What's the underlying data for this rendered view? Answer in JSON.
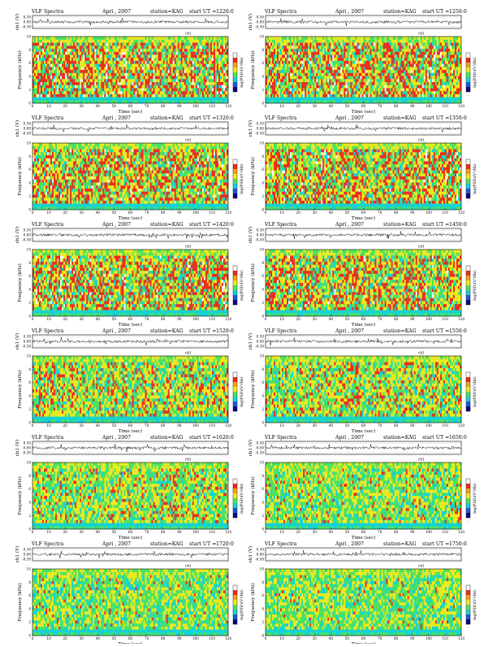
{
  "figure": {
    "header": {
      "title": "VLF Spectra",
      "date": "Apri , 2007",
      "station": "station=KAG",
      "start_prefix": "start UT ="
    },
    "axes": {
      "waveform_ylabel": "ch1 (V)",
      "spectrogram_ylabel_top": "ch1",
      "spectrogram_ylabel": "Frequency (kHz)",
      "xlabel": "Time (sec)",
      "colorbar_label": "log(PSD)(V²/Hz)",
      "colorbar_bottom_tick": "-"
    },
    "palette": {
      "background_low": "#16d3d3",
      "low": "#4fe35c",
      "mid": "#f2ea1c",
      "high": "#f02b1a",
      "saturated": "#ffffff",
      "trace": "#000000"
    }
  },
  "chart_data": [
    {
      "type": "heatmap",
      "start_ut": "1220:0",
      "x": [
        0,
        120
      ],
      "y": [
        0,
        10
      ],
      "waveform_ylim": [
        -0.3,
        0.3
      ],
      "waveform_ticks": [
        "0.30",
        "0.00",
        "-0.30"
      ],
      "x_ticks": [
        "0",
        "10",
        "20",
        "30",
        "40",
        "50",
        "60",
        "70",
        "80",
        "90",
        "100",
        "110",
        "120"
      ],
      "y_ticks": [
        "0",
        "2",
        "4",
        "6",
        "8",
        "10"
      ],
      "activity": 0.85
    },
    {
      "type": "heatmap",
      "start_ut": "1250:0",
      "x": [
        0,
        120
      ],
      "y": [
        0,
        10
      ],
      "waveform_ylim": [
        -0.3,
        0.3
      ],
      "waveform_ticks": [
        "0.30",
        "0.00",
        "-0.30"
      ],
      "x_ticks": [
        "0",
        "10",
        "20",
        "30",
        "40",
        "50",
        "60",
        "70",
        "80",
        "90",
        "100",
        "110",
        "120"
      ],
      "y_ticks": [
        "0",
        "2",
        "4",
        "6",
        "8",
        "10"
      ],
      "activity": 0.85
    },
    {
      "type": "heatmap",
      "start_ut": "1320:0",
      "x": [
        0,
        120
      ],
      "y": [
        0,
        10
      ],
      "waveform_ylim": [
        -0.3,
        0.3
      ],
      "waveform_ticks": [
        "0.30",
        "0.00",
        "-0.30"
      ],
      "x_ticks": [
        "0",
        "10",
        "20",
        "30",
        "40",
        "50",
        "60",
        "70",
        "80",
        "90",
        "100",
        "110",
        "120"
      ],
      "y_ticks": [
        "0",
        "2",
        "4",
        "6",
        "8",
        "10"
      ],
      "activity": 0.8
    },
    {
      "type": "heatmap",
      "start_ut": "1350:0",
      "x": [
        0,
        120
      ],
      "y": [
        0,
        10
      ],
      "waveform_ylim": [
        -0.3,
        0.3
      ],
      "waveform_ticks": [
        "0.30",
        "0.00",
        "-0.30"
      ],
      "x_ticks": [
        "0",
        "10",
        "20",
        "30",
        "40",
        "50",
        "60",
        "70",
        "80",
        "90",
        "100",
        "110",
        "120"
      ],
      "y_ticks": [
        "0",
        "2",
        "4",
        "6",
        "8",
        "10"
      ],
      "activity": 0.82
    },
    {
      "type": "heatmap",
      "start_ut": "1420:0",
      "x": [
        0,
        120
      ],
      "y": [
        0,
        10
      ],
      "waveform_ylim": [
        -0.3,
        0.3
      ],
      "waveform_ticks": [
        "0.30",
        "0.00",
        "-0.30"
      ],
      "x_ticks": [
        "0",
        "10",
        "20",
        "30",
        "40",
        "50",
        "60",
        "70",
        "80",
        "90",
        "100",
        "110",
        "120"
      ],
      "y_ticks": [
        "0",
        "2",
        "4",
        "6",
        "8",
        "10"
      ],
      "activity": 0.8
    },
    {
      "type": "heatmap",
      "start_ut": "1450:0",
      "x": [
        0,
        120
      ],
      "y": [
        0,
        10
      ],
      "waveform_ylim": [
        -0.3,
        0.3
      ],
      "waveform_ticks": [
        "0.30",
        "0.00",
        "-0.30"
      ],
      "x_ticks": [
        "0",
        "10",
        "20",
        "30",
        "40",
        "50",
        "60",
        "70",
        "80",
        "90",
        "100",
        "110",
        "120"
      ],
      "y_ticks": [
        "0",
        "2",
        "4",
        "6",
        "8",
        "10"
      ],
      "activity": 0.78
    },
    {
      "type": "heatmap",
      "start_ut": "1520:0",
      "x": [
        0,
        120
      ],
      "y": [
        0,
        10
      ],
      "waveform_ylim": [
        -0.3,
        0.3
      ],
      "waveform_ticks": [
        "0.30",
        "0.00",
        "-0.30"
      ],
      "x_ticks": [
        "0",
        "10",
        "20",
        "30",
        "40",
        "50",
        "60",
        "70",
        "80",
        "90",
        "100",
        "110",
        "120"
      ],
      "y_ticks": [
        "0",
        "2",
        "4",
        "6",
        "8",
        "10"
      ],
      "activity": 0.62
    },
    {
      "type": "heatmap",
      "start_ut": "1550:0",
      "x": [
        0,
        120
      ],
      "y": [
        0,
        10
      ],
      "waveform_ylim": [
        -0.3,
        0.3
      ],
      "waveform_ticks": [
        "0.30",
        "0.00",
        "-0.30"
      ],
      "x_ticks": [
        "0",
        "10",
        "20",
        "30",
        "40",
        "50",
        "60",
        "70",
        "80",
        "90",
        "100",
        "110",
        "120"
      ],
      "y_ticks": [
        "0",
        "2",
        "4",
        "6",
        "8",
        "10"
      ],
      "activity": 0.6
    },
    {
      "type": "heatmap",
      "start_ut": "1620:0",
      "x": [
        0,
        120
      ],
      "y": [
        0,
        10
      ],
      "waveform_ylim": [
        -0.3,
        0.3
      ],
      "waveform_ticks": [
        "0.30",
        "0.00",
        "-0.30"
      ],
      "x_ticks": [
        "0",
        "10",
        "20",
        "30",
        "40",
        "50",
        "60",
        "70",
        "80",
        "90",
        "100",
        "110",
        "120"
      ],
      "y_ticks": [
        "0",
        "2",
        "4",
        "6",
        "8",
        "10"
      ],
      "activity": 0.55
    },
    {
      "type": "heatmap",
      "start_ut": "1650:0",
      "x": [
        0,
        120
      ],
      "y": [
        0,
        10
      ],
      "waveform_ylim": [
        -0.3,
        0.3
      ],
      "waveform_ticks": [
        "0.30",
        "0.00",
        "-0.30"
      ],
      "x_ticks": [
        "0",
        "10",
        "20",
        "30",
        "40",
        "50",
        "60",
        "70",
        "80",
        "90",
        "100",
        "110",
        "120"
      ],
      "y_ticks": [
        "0",
        "2",
        "4",
        "6",
        "8",
        "10"
      ],
      "activity": 0.52
    },
    {
      "type": "heatmap",
      "start_ut": "1720:0",
      "x": [
        0,
        120
      ],
      "y": [
        0,
        10
      ],
      "waveform_ylim": [
        -0.3,
        0.3
      ],
      "waveform_ticks": [
        "0.30",
        "0.00",
        "-0.30"
      ],
      "x_ticks": [
        "0",
        "10",
        "20",
        "30",
        "40",
        "50",
        "60",
        "70",
        "80",
        "90",
        "100",
        "110",
        "120"
      ],
      "y_ticks": [
        "0",
        "2",
        "4",
        "6",
        "8",
        "10"
      ],
      "activity": 0.45
    },
    {
      "type": "heatmap",
      "start_ut": "1750:0",
      "x": [
        0,
        120
      ],
      "y": [
        0,
        10
      ],
      "waveform_ylim": [
        -0.3,
        0.3
      ],
      "waveform_ticks": [
        "0.30",
        "0.00",
        "-0.30"
      ],
      "x_ticks": [
        "0",
        "10",
        "20",
        "30",
        "40",
        "50",
        "60",
        "70",
        "80",
        "90",
        "100",
        "110",
        "120"
      ],
      "y_ticks": [
        "0",
        "2",
        "4",
        "6",
        "8",
        "10"
      ],
      "activity": 0.45
    }
  ]
}
